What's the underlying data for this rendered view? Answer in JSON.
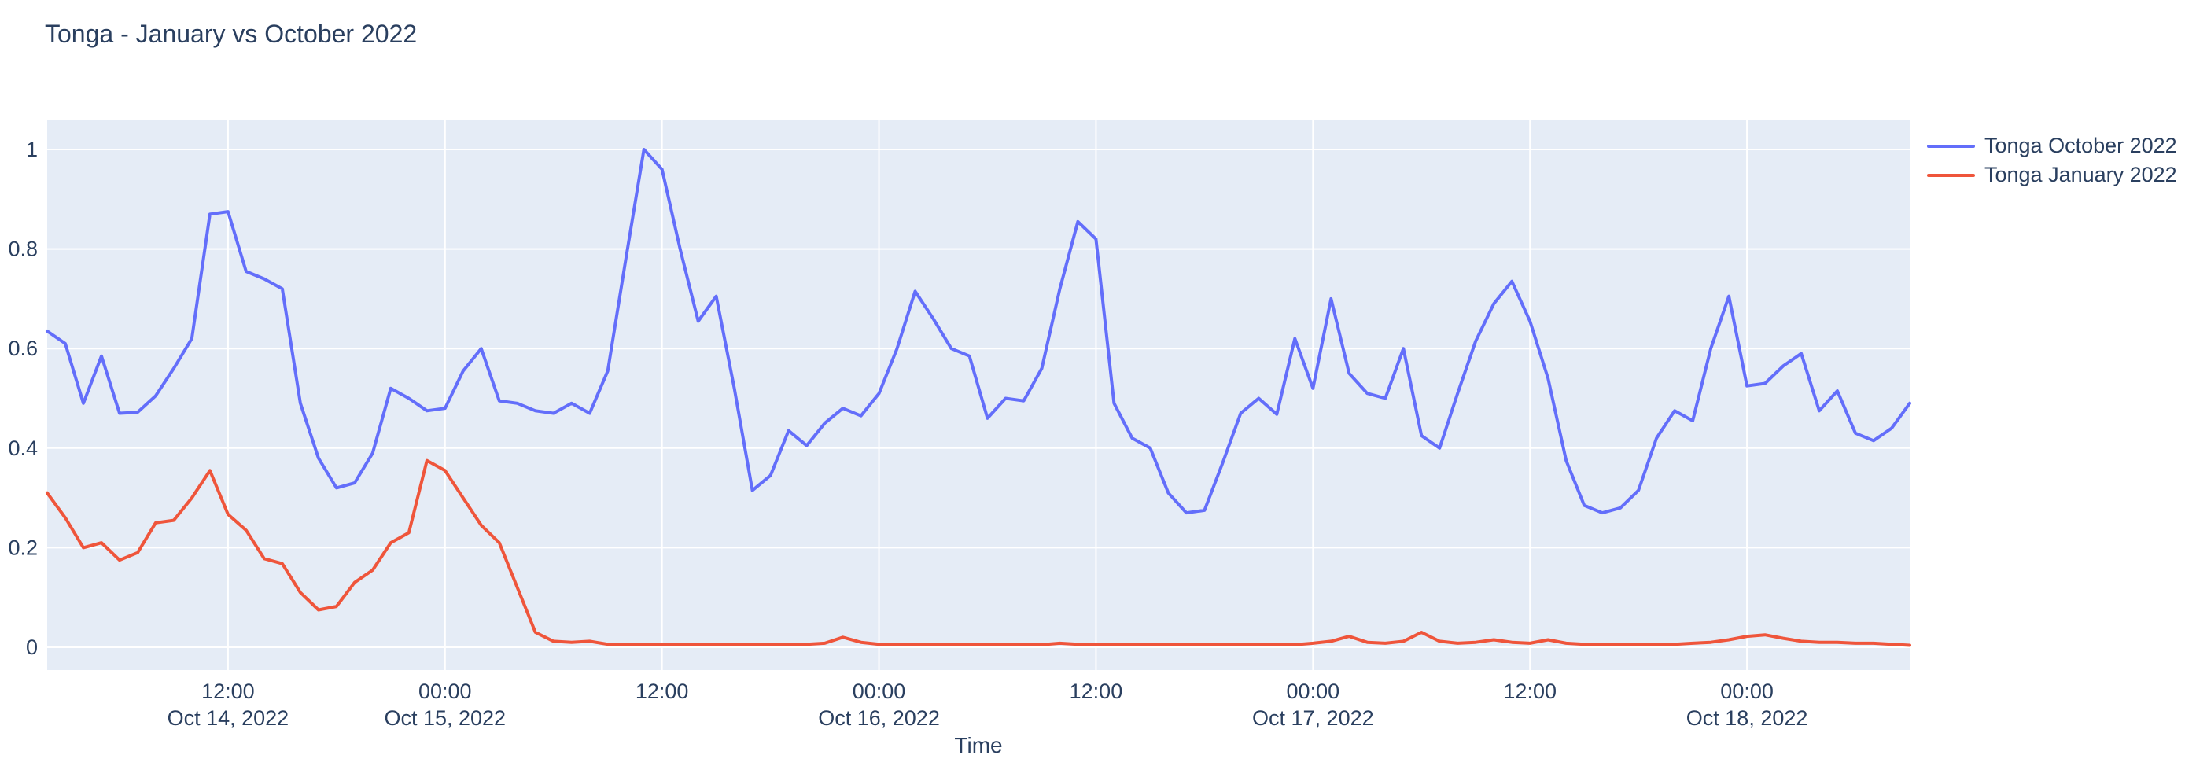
{
  "title": "Tonga - January vs October 2022",
  "chart_data": {
    "type": "line",
    "title": "Tonga - January vs October 2022",
    "xlabel": "Time",
    "ylabel": "",
    "x_start": "2022-10-14 02:00",
    "x_end": "2022-10-18 09:00",
    "x_interval_hours": 1,
    "ylim": [
      -0.046,
      1.06
    ],
    "grid": true,
    "plot_background": "#e5ecf6",
    "gridline_color": "#ffffff",
    "text_color": "#2a3f5f",
    "legend_position": "top-right",
    "y_ticks": [
      {
        "value": 0,
        "label": "0"
      },
      {
        "value": 0.2,
        "label": "0.2"
      },
      {
        "value": 0.4,
        "label": "0.4"
      },
      {
        "value": 0.6,
        "label": "0.6"
      },
      {
        "value": 0.8,
        "label": "0.8"
      },
      {
        "value": 1,
        "label": "1"
      }
    ],
    "x_ticks": [
      {
        "index": 10,
        "time": "12:00",
        "date": "Oct 14, 2022"
      },
      {
        "index": 22,
        "time": "00:00",
        "date": "Oct 15, 2022"
      },
      {
        "index": 34,
        "time": "12:00",
        "date": ""
      },
      {
        "index": 46,
        "time": "00:00",
        "date": "Oct 16, 2022"
      },
      {
        "index": 58,
        "time": "12:00",
        "date": ""
      },
      {
        "index": 70,
        "time": "00:00",
        "date": "Oct 17, 2022"
      },
      {
        "index": 82,
        "time": "12:00",
        "date": ""
      },
      {
        "index": 94,
        "time": "00:00",
        "date": "Oct 18, 2022"
      }
    ],
    "series": [
      {
        "name": "Tonga October 2022",
        "color": "#636efa",
        "values": [
          0.635,
          0.61,
          0.49,
          0.585,
          0.47,
          0.472,
          0.505,
          0.56,
          0.62,
          0.87,
          0.875,
          0.755,
          0.74,
          0.72,
          0.49,
          0.38,
          0.32,
          0.33,
          0.39,
          0.52,
          0.5,
          0.475,
          0.48,
          0.555,
          0.6,
          0.495,
          0.49,
          0.475,
          0.47,
          0.49,
          0.47,
          0.555,
          0.78,
          1.0,
          0.96,
          0.8,
          0.655,
          0.705,
          0.52,
          0.315,
          0.345,
          0.435,
          0.405,
          0.45,
          0.48,
          0.465,
          0.51,
          0.6,
          0.715,
          0.66,
          0.6,
          0.585,
          0.46,
          0.5,
          0.495,
          0.56,
          0.72,
          0.855,
          0.82,
          0.49,
          0.42,
          0.4,
          0.31,
          0.27,
          0.275,
          0.37,
          0.47,
          0.5,
          0.468,
          0.62,
          0.52,
          0.7,
          0.55,
          0.51,
          0.5,
          0.6,
          0.425,
          0.4,
          0.51,
          0.615,
          0.69,
          0.735,
          0.655,
          0.54,
          0.375,
          0.285,
          0.27,
          0.28,
          0.315,
          0.42,
          0.475,
          0.455,
          0.6,
          0.705,
          0.525,
          0.53,
          0.565,
          0.59,
          0.475,
          0.515,
          0.43,
          0.415,
          0.44,
          0.49
        ]
      },
      {
        "name": "Tonga January 2022",
        "color": "#ef553b",
        "values": [
          0.31,
          0.26,
          0.2,
          0.21,
          0.175,
          0.19,
          0.25,
          0.255,
          0.3,
          0.355,
          0.267,
          0.235,
          0.178,
          0.168,
          0.11,
          0.075,
          0.082,
          0.13,
          0.155,
          0.21,
          0.23,
          0.375,
          0.355,
          0.3,
          0.245,
          0.21,
          0.12,
          0.03,
          0.012,
          0.01,
          0.012,
          0.006,
          0.005,
          0.005,
          0.005,
          0.005,
          0.005,
          0.005,
          0.005,
          0.006,
          0.005,
          0.005,
          0.006,
          0.008,
          0.02,
          0.01,
          0.006,
          0.005,
          0.005,
          0.005,
          0.005,
          0.006,
          0.005,
          0.005,
          0.006,
          0.005,
          0.008,
          0.006,
          0.005,
          0.005,
          0.006,
          0.005,
          0.005,
          0.005,
          0.006,
          0.005,
          0.005,
          0.006,
          0.005,
          0.005,
          0.008,
          0.012,
          0.022,
          0.01,
          0.008,
          0.012,
          0.03,
          0.012,
          0.008,
          0.01,
          0.015,
          0.01,
          0.008,
          0.015,
          0.008,
          0.006,
          0.005,
          0.005,
          0.006,
          0.005,
          0.006,
          0.008,
          0.01,
          0.015,
          0.022,
          0.025,
          0.018,
          0.012,
          0.01,
          0.01,
          0.008,
          0.008,
          0.006,
          0.004
        ]
      }
    ]
  }
}
